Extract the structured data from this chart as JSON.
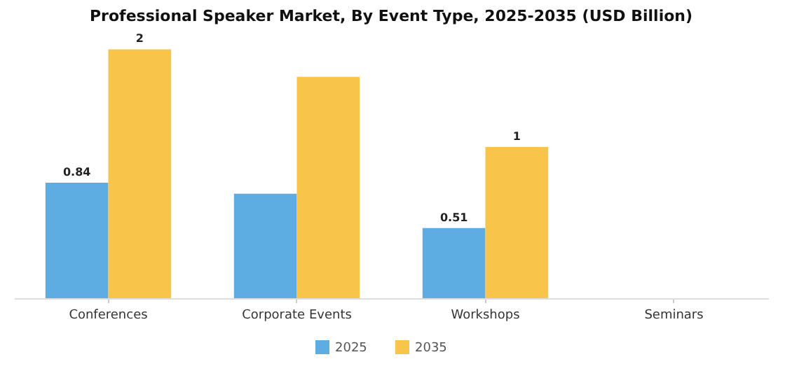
{
  "chart_data": {
    "type": "bar",
    "title": "Professional Speaker Market, By Event Type, 2025-2035 (USD Billion)",
    "categories": [
      "Conferences",
      "Corporate Events",
      "Workshops",
      "Seminars"
    ],
    "series": [
      {
        "name": "2025",
        "color": "#5dade2",
        "values": [
          0.84,
          0.76,
          0.51,
          null
        ],
        "value_labels": [
          "0.84",
          null,
          "0.51",
          null
        ]
      },
      {
        "name": "2035",
        "color": "#f9c44a",
        "values": [
          1.81,
          1.61,
          1.1,
          null
        ],
        "value_labels": [
          "2",
          null,
          "1",
          null
        ]
      }
    ],
    "legend": "bottom"
  }
}
